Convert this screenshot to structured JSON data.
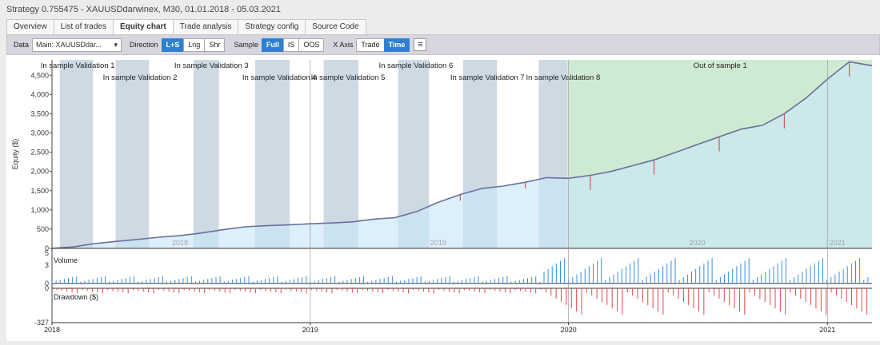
{
  "window_title": "Strategy 0.755475 - XAUUSDdarwinex, M30, 01.01.2018 - 05.03.2021",
  "tabs": [
    {
      "label": "Overview"
    },
    {
      "label": "List of trades"
    },
    {
      "label": "Equity chart",
      "active": true
    },
    {
      "label": "Trade analysis"
    },
    {
      "label": "Strategy config"
    },
    {
      "label": "Source Code"
    }
  ],
  "toolbar": {
    "data_label": "Data",
    "data_value": "Main: XAUUSDdar...",
    "direction_label": "Direction",
    "direction_options": [
      "L+S",
      "Lng",
      "Shr"
    ],
    "direction_selected": "L+S",
    "sample_label": "Sample",
    "sample_options": [
      "Full",
      "IS",
      "OOS"
    ],
    "sample_selected": "Full",
    "xaxis_label": "X Axis",
    "xaxis_options": [
      "Trade",
      "Time"
    ],
    "xaxis_selected": "Time",
    "menu_icon": "hamburger-menu-icon"
  },
  "chart_data": {
    "type": "area",
    "ylabel": "Equity ($)",
    "yticks": [
      "0",
      "500",
      "1,000",
      "1,500",
      "2,000",
      "2,500",
      "3,000",
      "3,500",
      "4,000",
      "4,500"
    ],
    "ylim": [
      0,
      4900
    ],
    "xlim": [
      "2018-01-01",
      "2021-03-05"
    ],
    "x_ticks_inside": [
      "2018",
      "2019",
      "2020",
      "2021"
    ],
    "x_ticks_bottom": [
      "2018",
      "2019",
      "2020",
      "2021"
    ],
    "equity": [
      [
        "2018-01-01",
        0
      ],
      [
        "2018-02-01",
        40
      ],
      [
        "2018-03-01",
        120
      ],
      [
        "2018-04-01",
        180
      ],
      [
        "2018-05-01",
        230
      ],
      [
        "2018-06-01",
        290
      ],
      [
        "2018-07-01",
        330
      ],
      [
        "2018-08-01",
        400
      ],
      [
        "2018-09-01",
        490
      ],
      [
        "2018-10-01",
        560
      ],
      [
        "2018-11-01",
        590
      ],
      [
        "2018-12-01",
        610
      ],
      [
        "2019-01-01",
        640
      ],
      [
        "2019-02-01",
        660
      ],
      [
        "2019-03-01",
        690
      ],
      [
        "2019-04-01",
        760
      ],
      [
        "2019-05-01",
        800
      ],
      [
        "2019-06-01",
        960
      ],
      [
        "2019-07-01",
        1200
      ],
      [
        "2019-08-01",
        1400
      ],
      [
        "2019-09-01",
        1560
      ],
      [
        "2019-10-01",
        1620
      ],
      [
        "2019-11-01",
        1720
      ],
      [
        "2019-12-01",
        1840
      ],
      [
        "2020-01-01",
        1820
      ],
      [
        "2020-02-01",
        1900
      ],
      [
        "2020-03-01",
        2000
      ],
      [
        "2020-04-01",
        2150
      ],
      [
        "2020-05-01",
        2300
      ],
      [
        "2020-06-01",
        2500
      ],
      [
        "2020-07-01",
        2700
      ],
      [
        "2020-08-01",
        2900
      ],
      [
        "2020-09-01",
        3100
      ],
      [
        "2020-10-01",
        3200
      ],
      [
        "2020-11-01",
        3500
      ],
      [
        "2020-12-01",
        3900
      ],
      [
        "2021-01-01",
        4400
      ],
      [
        "2021-02-01",
        4850
      ],
      [
        "2021-03-05",
        4750
      ]
    ],
    "bands": [
      {
        "label": "In sample Validation 1",
        "start": "2018-01-12",
        "end": "2018-02-28",
        "row": 0
      },
      {
        "label": "In sample Validation 2",
        "start": "2018-04-01",
        "end": "2018-05-18",
        "row": 1
      },
      {
        "label": "In sample Validation 3",
        "start": "2018-07-20",
        "end": "2018-08-25",
        "row": 0
      },
      {
        "label": "In sample Validation 4",
        "start": "2018-10-15",
        "end": "2018-12-03",
        "row": 1
      },
      {
        "label": "In sample Validation 5",
        "start": "2019-01-20",
        "end": "2019-03-10",
        "row": 1
      },
      {
        "label": "In sample Validation 6",
        "start": "2019-05-05",
        "end": "2019-06-18",
        "row": 0
      },
      {
        "label": "In sample Validation 7",
        "start": "2019-08-05",
        "end": "2019-09-22",
        "row": 1
      },
      {
        "label": "In sample Validation 8",
        "start": "2019-11-20",
        "end": "2019-12-31",
        "row": 1
      }
    ],
    "oos": {
      "label": "Out of sample 1",
      "start": "2020-01-01",
      "end": "2021-03-05"
    },
    "volume": {
      "label": "Volume",
      "yticks": [
        "5",
        "3",
        "0"
      ],
      "max": 5
    },
    "drawdown": {
      "label": "Drawdown ($)",
      "yticks": [
        "0",
        "-327"
      ],
      "min": -327
    }
  }
}
